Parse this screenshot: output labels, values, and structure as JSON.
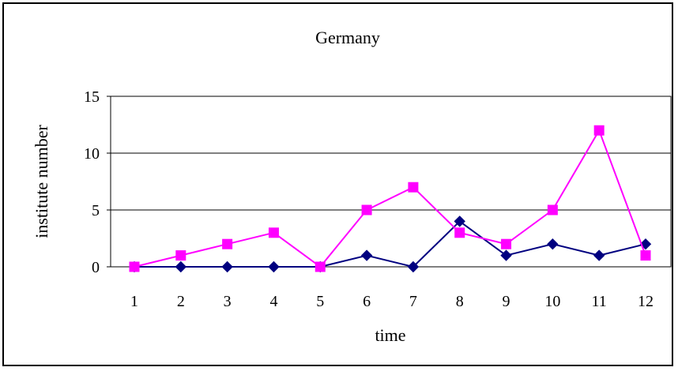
{
  "chart_data": {
    "type": "line",
    "title": "Germany",
    "xlabel": "time",
    "ylabel": "institute number",
    "categories": [
      "1",
      "2",
      "3",
      "4",
      "5",
      "6",
      "7",
      "8",
      "9",
      "10",
      "11",
      "12"
    ],
    "ylim": [
      0,
      15
    ],
    "yticks": [
      "0",
      "5",
      "10",
      "15"
    ],
    "grid": true,
    "series": [
      {
        "color": "#000080",
        "marker": "diamond",
        "values": [
          0,
          0,
          0,
          0,
          0,
          1,
          0,
          4,
          1,
          2,
          1,
          2
        ]
      },
      {
        "color": "#ff00ff",
        "marker": "square",
        "values": [
          0,
          1,
          2,
          3,
          0,
          5,
          7,
          3,
          2,
          5,
          12,
          1
        ]
      }
    ]
  }
}
